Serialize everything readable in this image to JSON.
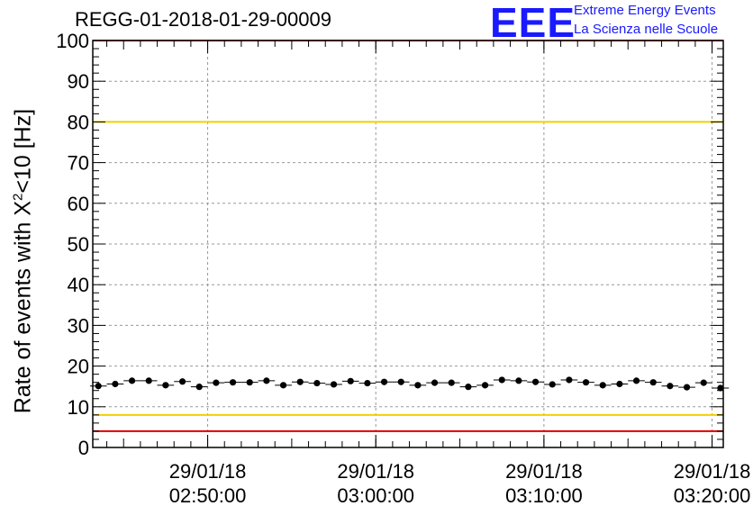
{
  "chart_data": {
    "type": "scatter",
    "title": "REGG-01-2018-01-29-00009",
    "ylabel_prefix": "Rate of events with X",
    "ylabel_sup": "2",
    "ylabel_suffix": "<10 [Hz]",
    "ylim": [
      0,
      100
    ],
    "yticks": [
      0,
      10,
      20,
      30,
      40,
      50,
      60,
      70,
      80,
      90,
      100
    ],
    "xlim": [
      "2018-01-29 02:43:10",
      "2018-01-29 03:20:40"
    ],
    "xticks": [
      {
        "t": "2018-01-29 02:50:00",
        "date": "29/01/18",
        "time": "02:50:00"
      },
      {
        "t": "2018-01-29 03:00:00",
        "date": "29/01/18",
        "time": "03:00:00"
      },
      {
        "t": "2018-01-29 03:10:00",
        "date": "29/01/18",
        "time": "03:10:00"
      },
      {
        "t": "2018-01-29 03:20:00",
        "date": "29/01/18",
        "time": "03:20:00"
      }
    ],
    "grid": true,
    "reference_lines": [
      {
        "y": 80,
        "color": "#f0d000"
      },
      {
        "y": 8,
        "color": "#f0d000"
      },
      {
        "y": 4,
        "color": "#e00000"
      },
      {
        "y": 100,
        "color": "#e00000"
      }
    ],
    "series": [
      {
        "color": "#000000",
        "x": [
          "2018-01-29 02:43:30",
          "2018-01-29 02:44:30",
          "2018-01-29 02:45:30",
          "2018-01-29 02:46:30",
          "2018-01-29 02:47:30",
          "2018-01-29 02:48:30",
          "2018-01-29 02:49:30",
          "2018-01-29 02:50:30",
          "2018-01-29 02:51:30",
          "2018-01-29 02:52:30",
          "2018-01-29 02:53:30",
          "2018-01-29 02:54:30",
          "2018-01-29 02:55:30",
          "2018-01-29 02:56:30",
          "2018-01-29 02:57:30",
          "2018-01-29 02:58:30",
          "2018-01-29 02:59:30",
          "2018-01-29 03:00:30",
          "2018-01-29 03:01:30",
          "2018-01-29 03:02:30",
          "2018-01-29 03:03:30",
          "2018-01-29 03:04:30",
          "2018-01-29 03:05:30",
          "2018-01-29 03:06:30",
          "2018-01-29 03:07:30",
          "2018-01-29 03:08:30",
          "2018-01-29 03:09:30",
          "2018-01-29 03:10:30",
          "2018-01-29 03:11:30",
          "2018-01-29 03:12:30",
          "2018-01-29 03:13:30",
          "2018-01-29 03:14:30",
          "2018-01-29 03:15:30",
          "2018-01-29 03:16:30",
          "2018-01-29 03:17:30",
          "2018-01-29 03:18:30",
          "2018-01-29 03:19:30",
          "2018-01-29 03:20:30"
        ],
        "y": [
          15.1,
          15.6,
          16.4,
          16.4,
          15.3,
          16.2,
          14.9,
          15.9,
          16.0,
          16.0,
          16.4,
          15.3,
          16.1,
          15.8,
          15.5,
          16.3,
          15.8,
          16.1,
          16.1,
          15.3,
          15.9,
          15.9,
          14.9,
          15.3,
          16.6,
          16.4,
          16.1,
          15.5,
          16.6,
          16.0,
          15.3,
          15.6,
          16.4,
          16.0,
          15.1,
          14.8,
          15.9,
          14.6
        ],
        "err": [
          0.7,
          0.7,
          0.7,
          0.7,
          0.7,
          0.7,
          0.7,
          0.7,
          0.7,
          0.7,
          0.7,
          0.7,
          0.7,
          0.7,
          0.7,
          0.7,
          0.7,
          0.7,
          0.7,
          0.7,
          0.7,
          0.7,
          0.7,
          0.7,
          0.7,
          0.7,
          0.7,
          0.7,
          0.7,
          0.7,
          0.7,
          0.7,
          0.7,
          0.7,
          0.7,
          0.7,
          0.7,
          0.7
        ]
      }
    ]
  },
  "logo": {
    "text": "EEE",
    "line1": "Extreme Energy Events",
    "line2": "La Scienza nelle Scuole",
    "color": "#1a1aff"
  }
}
